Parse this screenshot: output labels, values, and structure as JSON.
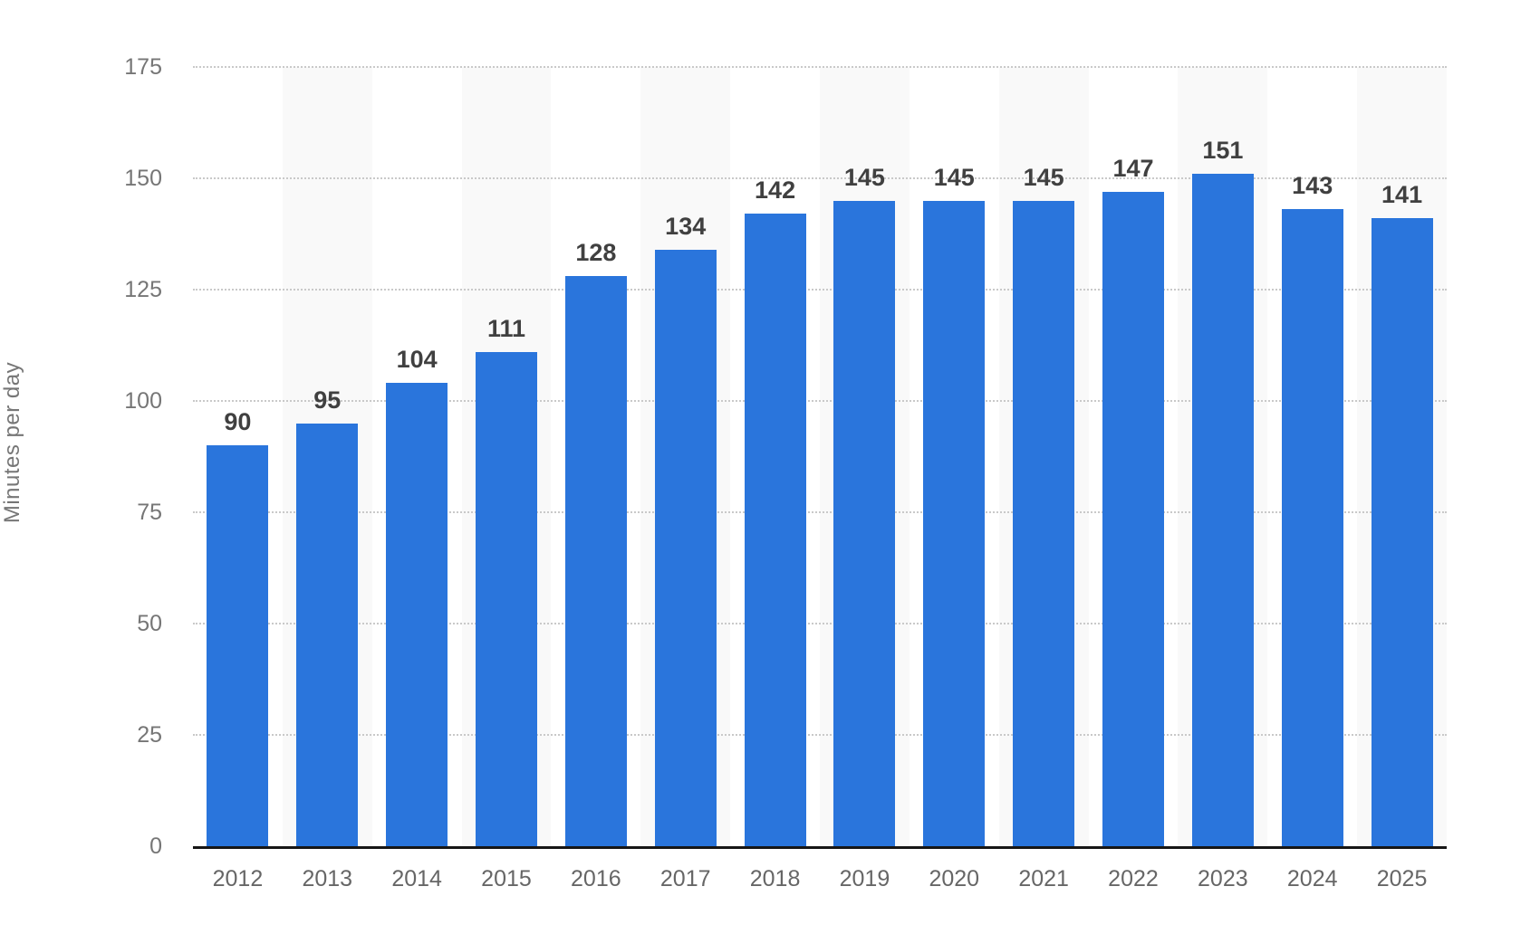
{
  "chart_data": {
    "type": "bar",
    "ylabel": "Minutes per day",
    "xlabel": "",
    "categories": [
      "2012",
      "2013",
      "2014",
      "2015",
      "2016",
      "2017",
      "2018",
      "2019",
      "2020",
      "2021",
      "2022",
      "2023",
      "2024",
      "2025"
    ],
    "values": [
      90,
      95,
      104,
      111,
      128,
      134,
      142,
      145,
      145,
      145,
      147,
      151,
      143,
      141
    ],
    "ylim": [
      0,
      175
    ],
    "yticks": [
      0,
      25,
      50,
      75,
      100,
      125,
      150,
      175
    ],
    "grid": "horizontal-dotted",
    "legend": "none",
    "value_labels": "above-bars",
    "background_bands": "alternating-columns",
    "colors": {
      "bar": "#2a75dc",
      "band": "#f9f9f9",
      "gridline": "#c9c9c9",
      "axis_line": "#161616",
      "y_tick_label": "#767676",
      "x_tick_label": "#666666",
      "value_label": "#404040"
    }
  }
}
